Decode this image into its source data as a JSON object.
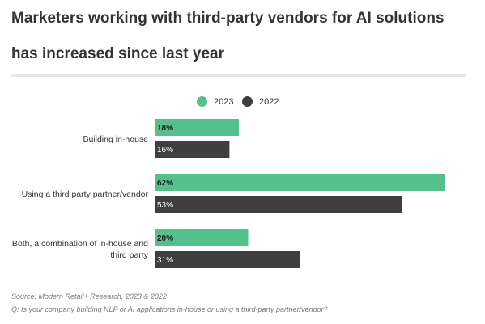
{
  "title": {
    "line1": "Marketers working with third-party vendors for AI solutions",
    "line2": "has increased since last year"
  },
  "legend": [
    {
      "label": "2023",
      "color": "#55c08b"
    },
    {
      "label": "2022",
      "color": "#3f3f3f"
    }
  ],
  "chart_data": {
    "type": "bar",
    "orientation": "horizontal",
    "categories": [
      [
        "Building in-house"
      ],
      [
        "Using a third party partner/vendor"
      ],
      [
        "Both, a combination of in-house and",
        "third party"
      ]
    ],
    "series": [
      {
        "name": "2023",
        "color": "#55c08b",
        "values": [
          18,
          62,
          20
        ],
        "labels": [
          "18%",
          "62%",
          "20%"
        ]
      },
      {
        "name": "2022",
        "color": "#3f3f3f",
        "values": [
          16,
          53,
          31
        ],
        "labels": [
          "16%",
          "53%",
          "31%"
        ]
      }
    ],
    "xlim": [
      0,
      62
    ],
    "grid": false,
    "legend_position": "top"
  },
  "footer": {
    "source": "Source: Modern Retail+ Research, 2023 & 2022",
    "question": "Q: Is your company building NLP or AI applications in-house or using a third-party partner/vendor?"
  }
}
